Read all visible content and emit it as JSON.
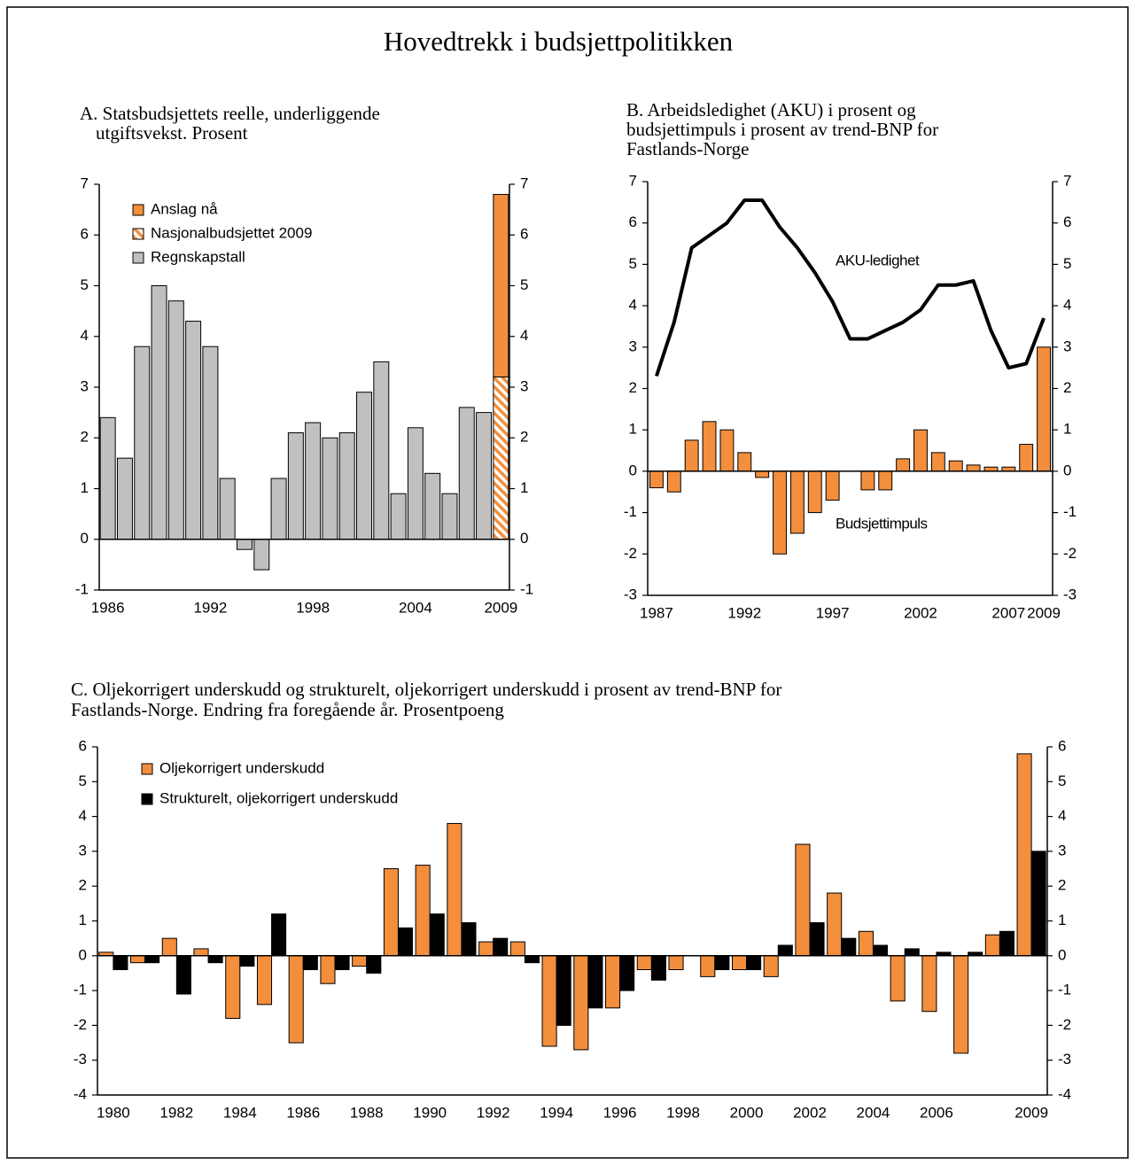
{
  "title": "Hovedtrekk i budsjettpolitikken",
  "chart_data": [
    {
      "type": "bar",
      "stacked": true,
      "legend": true,
      "title": [
        "A. Statsbudsjettets reelle, underliggende",
        "utgiftsvekst. Prosent"
      ],
      "categories": [
        "1986",
        null,
        null,
        null,
        null,
        null,
        "1992",
        null,
        null,
        null,
        null,
        null,
        "1998",
        null,
        null,
        null,
        null,
        null,
        "2004",
        null,
        null,
        null,
        null,
        "2009"
      ],
      "series": [
        {
          "name": "Anslag nå",
          "color": "#f28e3c",
          "values": [
            null,
            null,
            null,
            null,
            null,
            null,
            null,
            null,
            null,
            null,
            null,
            null,
            null,
            null,
            null,
            null,
            null,
            null,
            null,
            null,
            null,
            null,
            null,
            3.6
          ]
        },
        {
          "name": "Nasjonalbudsjettet 2009",
          "color": "#f28e3c",
          "hatch": true,
          "values": [
            null,
            null,
            null,
            null,
            null,
            null,
            null,
            null,
            null,
            null,
            null,
            null,
            null,
            null,
            null,
            null,
            null,
            null,
            null,
            null,
            null,
            null,
            null,
            3.2
          ]
        },
        {
          "name": "Regnskapstall",
          "color": "#c0c0c0",
          "values": [
            2.4,
            1.6,
            3.8,
            5.0,
            4.7,
            4.3,
            3.8,
            1.2,
            -0.2,
            -0.6,
            1.2,
            2.1,
            2.3,
            2.0,
            2.1,
            2.9,
            3.5,
            0.9,
            2.2,
            1.3,
            0.9,
            2.6,
            2.5,
            null
          ]
        }
      ],
      "ylim": [
        -1,
        7
      ],
      "yticks": [
        -1,
        0,
        1,
        2,
        3,
        4,
        5,
        6,
        7
      ],
      "y2lim": [
        -1,
        7
      ],
      "y2ticks": [
        -1,
        0,
        1,
        2,
        3,
        4,
        5,
        6,
        7
      ]
    },
    {
      "type": "combo",
      "stacked": false,
      "legend": false,
      "title": [
        "B.  Arbeidsledighet (AKU) i prosent og",
        "budsjettimpuls i prosent av trend-BNP for",
        "Fastlands-Norge"
      ],
      "categories": [
        "1987",
        null,
        null,
        null,
        null,
        "1992",
        null,
        null,
        null,
        null,
        "1997",
        null,
        null,
        null,
        null,
        "2002",
        null,
        null,
        null,
        null,
        "2007",
        null,
        "2009"
      ],
      "series": [
        {
          "name": "Budsjettimpuls",
          "type": "bar",
          "color": "#f28e3c",
          "values": [
            -0.4,
            -0.5,
            0.75,
            1.2,
            1.0,
            0.45,
            -0.15,
            -2.0,
            -1.5,
            -1.0,
            -0.7,
            0,
            -0.45,
            -0.45,
            0.3,
            1.0,
            0.45,
            0.25,
            0.15,
            0.1,
            0.1,
            0.65,
            3.0
          ]
        },
        {
          "name": "AKU-ledighet",
          "type": "line",
          "color": "#000000",
          "values": [
            2.3,
            3.6,
            5.4,
            5.7,
            6.0,
            6.55,
            6.55,
            5.9,
            5.4,
            4.8,
            4.1,
            3.2,
            3.2,
            3.4,
            3.6,
            3.9,
            4.5,
            4.5,
            4.6,
            3.4,
            2.5,
            2.6,
            3.7
          ]
        }
      ],
      "ylim": [
        -3,
        7
      ],
      "yticks": [
        -3,
        -2,
        -1,
        0,
        1,
        2,
        3,
        4,
        5,
        6,
        7
      ],
      "y2lim": [
        -3,
        7
      ],
      "y2ticks": [
        -3,
        -2,
        -1,
        0,
        1,
        2,
        3,
        4,
        5,
        6,
        7
      ]
    },
    {
      "type": "bar",
      "stacked": false,
      "legend": true,
      "title": [
        "C. Oljekorrigert underskudd og strukturelt, oljekorrigert underskudd i prosent av trend-BNP for",
        "Fastlands-Norge. Endring fra foregående år. Prosentpoeng"
      ],
      "categories": [
        "1980",
        null,
        "1982",
        null,
        "1984",
        null,
        "1986",
        null,
        "1988",
        null,
        "1990",
        null,
        "1992",
        null,
        "1994",
        null,
        "1996",
        null,
        "1998",
        null,
        "2000",
        null,
        "2002",
        null,
        "2004",
        null,
        "2006",
        null,
        null,
        "2009"
      ],
      "series": [
        {
          "name": "Oljekorrigert underskudd",
          "color": "#f28e3c",
          "values": [
            0.1,
            -0.2,
            0.5,
            0.2,
            -1.8,
            -1.4,
            -2.5,
            -0.8,
            -0.3,
            2.5,
            2.6,
            3.8,
            0.4,
            0.4,
            -2.6,
            -2.7,
            -1.5,
            -0.4,
            -0.4,
            -0.6,
            -0.4,
            -0.6,
            3.2,
            1.8,
            0.7,
            -1.3,
            -1.6,
            -2.8,
            0.6,
            5.8
          ]
        },
        {
          "name": "Strukturelt, oljekorrigert underskudd",
          "color": "#000000",
          "values": [
            -0.4,
            -0.2,
            -1.1,
            -0.2,
            -0.3,
            1.2,
            -0.4,
            -0.4,
            -0.5,
            0.8,
            1.2,
            0.95,
            0.5,
            -0.2,
            -2.0,
            -1.5,
            -1.0,
            -0.7,
            0,
            -0.4,
            -0.4,
            0.3,
            0.95,
            0.5,
            0.3,
            0.2,
            0.1,
            0.1,
            0.7,
            3.0
          ]
        }
      ],
      "ylim": [
        -4,
        6
      ],
      "yticks": [
        -4,
        -3,
        -2,
        -1,
        0,
        1,
        2,
        3,
        4,
        5,
        6
      ],
      "y2lim": [
        -4,
        6
      ],
      "y2ticks": [
        -4,
        -3,
        -2,
        -1,
        0,
        1,
        2,
        3,
        4,
        5,
        6
      ]
    }
  ]
}
